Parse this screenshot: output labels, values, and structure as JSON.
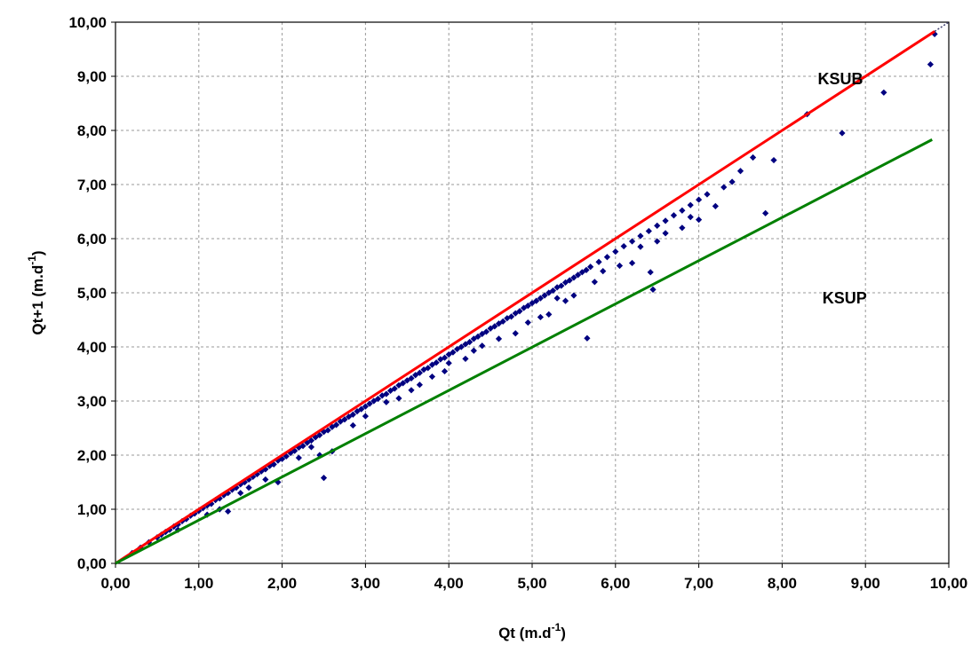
{
  "chart_data": {
    "type": "scatter",
    "xlabel": {
      "base": "Qt (m.d",
      "sup": "-1",
      "close": ")"
    },
    "ylabel": {
      "base": "Qt+1 (m.d",
      "sup": "-1",
      "close": ")"
    },
    "xlim": [
      0,
      10
    ],
    "ylim": [
      0,
      10
    ],
    "xticks": [
      "0,00",
      "1,00",
      "2,00",
      "3,00",
      "4,00",
      "5,00",
      "6,00",
      "7,00",
      "8,00",
      "9,00",
      "10,00"
    ],
    "yticks": [
      "0,00",
      "1,00",
      "2,00",
      "3,00",
      "4,00",
      "5,00",
      "6,00",
      "7,00",
      "8,00",
      "9,00",
      "10,00"
    ],
    "grid": true,
    "annotations": [
      {
        "id": "ksub",
        "text": "KSUB",
        "x": 8.7,
        "y": 8.85
      },
      {
        "id": "ksup",
        "text": "KSUP",
        "x": 8.75,
        "y": 4.8
      }
    ],
    "lines": [
      {
        "id": "one-to-one",
        "style": "dotted",
        "color": "#404070",
        "x": [
          0,
          10
        ],
        "y": [
          0,
          10
        ]
      },
      {
        "id": "ksub-line",
        "style": "solid",
        "color": "#ff0000",
        "x": [
          0,
          9.83
        ],
        "y": [
          0,
          9.83
        ]
      },
      {
        "id": "ksup-line",
        "style": "solid",
        "color": "#008000",
        "x": [
          0,
          9.8
        ],
        "y": [
          0,
          7.83
        ]
      }
    ],
    "series": [
      {
        "marker": "diamond",
        "color": "#000080",
        "points": [
          [
            0.2,
            0.19
          ],
          [
            0.3,
            0.29
          ],
          [
            0.4,
            0.39
          ],
          [
            0.5,
            0.48
          ],
          [
            0.55,
            0.53
          ],
          [
            0.6,
            0.58
          ],
          [
            0.65,
            0.62
          ],
          [
            0.7,
            0.68
          ],
          [
            0.75,
            0.72
          ],
          [
            0.8,
            0.78
          ],
          [
            0.85,
            0.82
          ],
          [
            0.9,
            0.88
          ],
          [
            0.95,
            0.92
          ],
          [
            1.0,
            0.97
          ],
          [
            1.05,
            1.02
          ],
          [
            1.1,
            1.07
          ],
          [
            1.15,
            1.1
          ],
          [
            1.2,
            1.17
          ],
          [
            1.25,
            1.2
          ],
          [
            1.3,
            1.26
          ],
          [
            1.35,
            1.3
          ],
          [
            1.4,
            1.36
          ],
          [
            1.45,
            1.4
          ],
          [
            1.5,
            1.46
          ],
          [
            1.55,
            1.5
          ],
          [
            1.6,
            1.55
          ],
          [
            1.65,
            1.6
          ],
          [
            1.7,
            1.65
          ],
          [
            1.75,
            1.7
          ],
          [
            1.8,
            1.74
          ],
          [
            1.85,
            1.8
          ],
          [
            1.9,
            1.83
          ],
          [
            1.95,
            1.9
          ],
          [
            2.0,
            1.93
          ],
          [
            2.05,
            1.98
          ],
          [
            2.1,
            2.04
          ],
          [
            2.15,
            2.08
          ],
          [
            2.2,
            2.14
          ],
          [
            2.25,
            2.17
          ],
          [
            2.3,
            2.23
          ],
          [
            2.35,
            2.27
          ],
          [
            2.4,
            2.33
          ],
          [
            2.45,
            2.37
          ],
          [
            2.5,
            2.43
          ],
          [
            2.55,
            2.46
          ],
          [
            2.6,
            2.52
          ],
          [
            2.65,
            2.56
          ],
          [
            2.7,
            2.62
          ],
          [
            2.75,
            2.66
          ],
          [
            2.8,
            2.71
          ],
          [
            2.85,
            2.75
          ],
          [
            2.9,
            2.81
          ],
          [
            2.95,
            2.85
          ],
          [
            3.0,
            2.9
          ],
          [
            3.05,
            2.95
          ],
          [
            3.1,
            3.0
          ],
          [
            3.15,
            3.04
          ],
          [
            3.2,
            3.1
          ],
          [
            3.25,
            3.13
          ],
          [
            3.3,
            3.19
          ],
          [
            3.35,
            3.23
          ],
          [
            3.4,
            3.29
          ],
          [
            3.45,
            3.33
          ],
          [
            3.5,
            3.38
          ],
          [
            3.55,
            3.42
          ],
          [
            3.6,
            3.48
          ],
          [
            3.65,
            3.52
          ],
          [
            3.7,
            3.58
          ],
          [
            3.75,
            3.61
          ],
          [
            3.8,
            3.67
          ],
          [
            3.85,
            3.71
          ],
          [
            3.9,
            3.77
          ],
          [
            3.95,
            3.8
          ],
          [
            4.0,
            3.86
          ],
          [
            4.05,
            3.9
          ],
          [
            4.1,
            3.96
          ],
          [
            4.15,
            4.0
          ],
          [
            4.2,
            4.05
          ],
          [
            4.25,
            4.09
          ],
          [
            4.3,
            4.15
          ],
          [
            4.35,
            4.19
          ],
          [
            4.4,
            4.24
          ],
          [
            4.45,
            4.28
          ],
          [
            4.5,
            4.34
          ],
          [
            4.55,
            4.38
          ],
          [
            4.6,
            4.43
          ],
          [
            4.65,
            4.47
          ],
          [
            4.7,
            4.53
          ],
          [
            4.75,
            4.56
          ],
          [
            4.8,
            4.62
          ],
          [
            4.85,
            4.66
          ],
          [
            4.9,
            4.72
          ],
          [
            4.95,
            4.76
          ],
          [
            5.0,
            4.81
          ],
          [
            5.05,
            4.85
          ],
          [
            5.1,
            4.9
          ],
          [
            5.15,
            4.95
          ],
          [
            5.2,
            5.0
          ],
          [
            5.25,
            5.04
          ],
          [
            5.3,
            5.1
          ],
          [
            5.35,
            5.13
          ],
          [
            5.4,
            5.19
          ],
          [
            5.45,
            5.23
          ],
          [
            5.5,
            5.28
          ],
          [
            5.55,
            5.33
          ],
          [
            5.6,
            5.38
          ],
          [
            5.65,
            5.42
          ],
          [
            5.7,
            5.48
          ],
          [
            5.8,
            5.57
          ],
          [
            5.9,
            5.66
          ],
          [
            6.0,
            5.76
          ],
          [
            6.1,
            5.86
          ],
          [
            6.2,
            5.95
          ],
          [
            6.3,
            6.05
          ],
          [
            6.4,
            6.14
          ],
          [
            6.5,
            6.24
          ],
          [
            6.6,
            6.33
          ],
          [
            6.7,
            6.43
          ],
          [
            6.8,
            6.52
          ],
          [
            6.9,
            6.62
          ],
          [
            7.0,
            6.72
          ],
          [
            7.1,
            6.82
          ],
          [
            7.3,
            6.95
          ],
          [
            7.5,
            7.25
          ],
          [
            7.65,
            7.5
          ],
          [
            7.9,
            7.45
          ],
          [
            8.3,
            8.3
          ],
          [
            8.72,
            7.95
          ],
          [
            9.22,
            8.7
          ],
          [
            9.78,
            9.22
          ],
          [
            9.83,
            9.78
          ],
          [
            6.42,
            5.38
          ],
          [
            6.45,
            5.06
          ],
          [
            5.66,
            4.16
          ],
          [
            2.5,
            1.58
          ],
          [
            7.8,
            6.47
          ],
          [
            7.0,
            6.35
          ],
          [
            6.3,
            5.85
          ],
          [
            5.4,
            4.85
          ],
          [
            5.2,
            4.6
          ],
          [
            1.35,
            0.96
          ],
          [
            1.25,
            1.0
          ],
          [
            1.95,
            1.5
          ],
          [
            4.3,
            3.93
          ],
          [
            4.8,
            4.25
          ],
          [
            3.95,
            3.55
          ],
          [
            3.0,
            2.72
          ],
          [
            2.6,
            2.07
          ],
          [
            2.45,
            2.0
          ],
          [
            3.65,
            3.3
          ],
          [
            4.4,
            4.02
          ],
          [
            5.1,
            4.55
          ],
          [
            5.5,
            4.95
          ],
          [
            5.85,
            5.4
          ],
          [
            6.2,
            5.55
          ],
          [
            6.5,
            5.95
          ],
          [
            6.9,
            6.4
          ],
          [
            4.0,
            3.7
          ],
          [
            3.4,
            3.05
          ],
          [
            2.2,
            1.95
          ],
          [
            1.6,
            1.4
          ],
          [
            1.1,
            0.9
          ],
          [
            0.75,
            0.62
          ],
          [
            1.5,
            1.3
          ],
          [
            1.8,
            1.55
          ],
          [
            2.35,
            2.15
          ],
          [
            2.85,
            2.55
          ],
          [
            3.25,
            2.98
          ],
          [
            3.8,
            3.45
          ],
          [
            4.6,
            4.15
          ],
          [
            4.95,
            4.45
          ],
          [
            5.3,
            4.9
          ],
          [
            5.75,
            5.2
          ],
          [
            6.05,
            5.5
          ],
          [
            6.6,
            6.1
          ],
          [
            7.2,
            6.6
          ],
          [
            6.8,
            6.2
          ],
          [
            7.4,
            7.05
          ],
          [
            3.55,
            3.2
          ],
          [
            4.2,
            3.78
          ]
        ]
      }
    ]
  }
}
